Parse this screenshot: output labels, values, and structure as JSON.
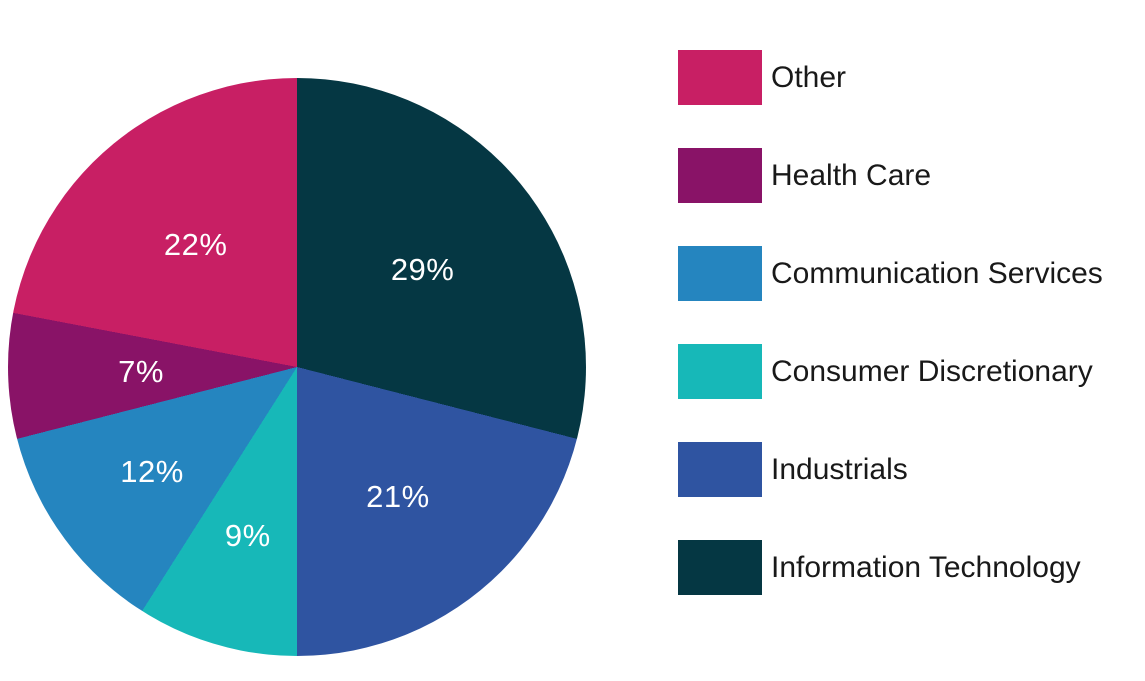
{
  "figure": {
    "background_color": "#ffffff",
    "slice_label_color": "#ffffff"
  },
  "chart_data": {
    "type": "pie",
    "title": "",
    "legend_position": "right",
    "start_angle_deg": 0,
    "direction": "clockwise",
    "slices": [
      {
        "label": "Information Technology",
        "value": 29,
        "display": "29%",
        "color": "#053743",
        "label_r": 0.55
      },
      {
        "label": "Industrials",
        "value": 21,
        "display": "21%",
        "color": "#2F54A1",
        "label_r": 0.57
      },
      {
        "label": "Consumer Discretionary",
        "value": 9,
        "display": "9%",
        "color": "#17B8B8",
        "label_r": 0.61
      },
      {
        "label": "Communication Services",
        "value": 12,
        "display": "12%",
        "color": "#2585BF",
        "label_r": 0.62
      },
      {
        "label": "Health Care",
        "value": 7,
        "display": "7%",
        "color": "#891367",
        "label_r": 0.54
      },
      {
        "label": "Other",
        "value": 22,
        "display": "22%",
        "color": "#C81F64",
        "label_r": 0.55
      }
    ],
    "legend": [
      {
        "label": "Other",
        "color": "#C81F64"
      },
      {
        "label": "Health Care",
        "color": "#891367"
      },
      {
        "label": "Communication Services",
        "color": "#2585BF"
      },
      {
        "label": "Consumer Discretionary",
        "color": "#17B8B8"
      },
      {
        "label": "Industrials",
        "color": "#2F54A1"
      },
      {
        "label": "Information Technology",
        "color": "#053743"
      }
    ]
  }
}
